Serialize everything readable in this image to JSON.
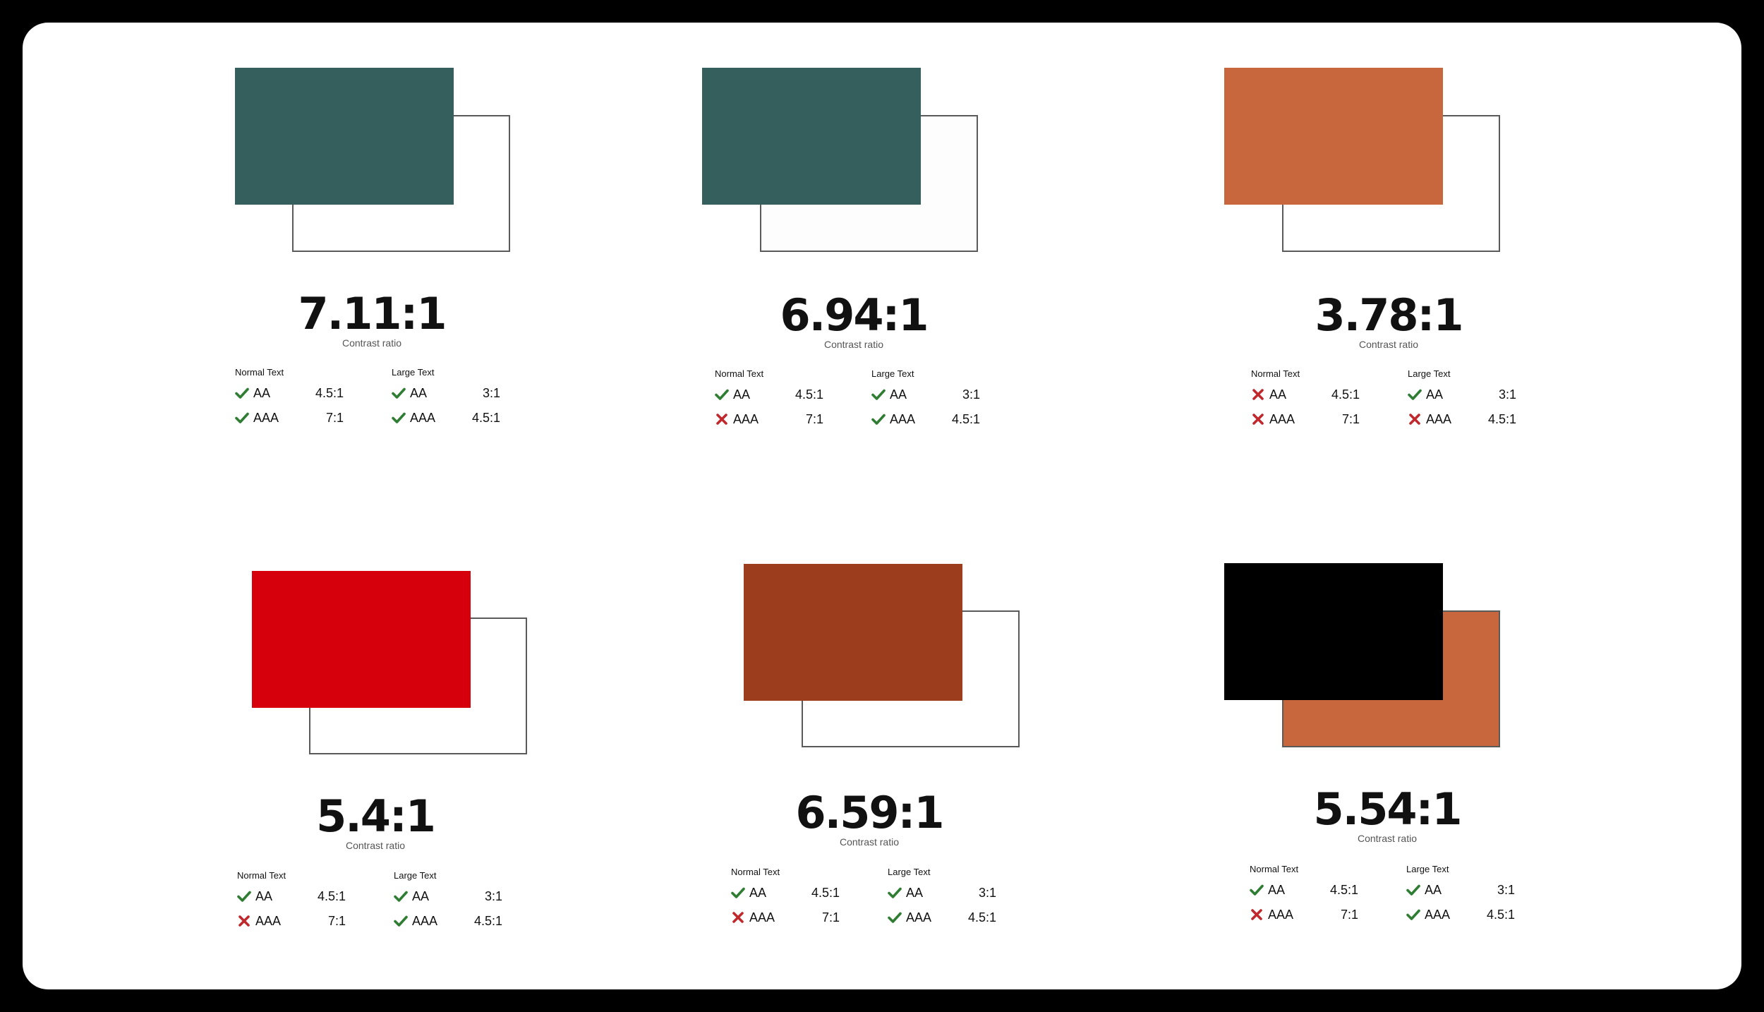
{
  "colors": {
    "pass": "#2e7d32",
    "fail": "#c0282d"
  },
  "labels": {
    "contrast_ratio": "Contrast ratio",
    "normal_text": "Normal Text",
    "large_text": "Large Text",
    "aa": "AA",
    "aaa": "AAA"
  },
  "cards": [
    {
      "ratio": "7.11:1",
      "foreground": "#355f5d",
      "background": "#ffffff",
      "normal": {
        "aa": {
          "pass": true,
          "req": "4.5:1"
        },
        "aaa": {
          "pass": true,
          "req": "7:1"
        }
      },
      "large": {
        "aa": {
          "pass": true,
          "req": "3:1"
        },
        "aaa": {
          "pass": true,
          "req": "4.5:1"
        }
      }
    },
    {
      "ratio": "6.94:1",
      "foreground": "#355f5d",
      "background": "#fdfdfd",
      "normal": {
        "aa": {
          "pass": true,
          "req": "4.5:1"
        },
        "aaa": {
          "pass": false,
          "req": "7:1"
        }
      },
      "large": {
        "aa": {
          "pass": true,
          "req": "3:1"
        },
        "aaa": {
          "pass": true,
          "req": "4.5:1"
        }
      }
    },
    {
      "ratio": "3.78:1",
      "foreground": "#c8663d",
      "background": "#ffffff",
      "normal": {
        "aa": {
          "pass": false,
          "req": "4.5:1"
        },
        "aaa": {
          "pass": false,
          "req": "7:1"
        }
      },
      "large": {
        "aa": {
          "pass": true,
          "req": "3:1"
        },
        "aaa": {
          "pass": false,
          "req": "4.5:1"
        }
      }
    },
    {
      "ratio": "5.4:1",
      "foreground": "#d6000c",
      "background": "#ffffff",
      "normal": {
        "aa": {
          "pass": true,
          "req": "4.5:1"
        },
        "aaa": {
          "pass": false,
          "req": "7:1"
        }
      },
      "large": {
        "aa": {
          "pass": true,
          "req": "3:1"
        },
        "aaa": {
          "pass": true,
          "req": "4.5:1"
        }
      }
    },
    {
      "ratio": "6.59:1",
      "foreground": "#9c3e1d",
      "background": "#ffffff",
      "normal": {
        "aa": {
          "pass": true,
          "req": "4.5:1"
        },
        "aaa": {
          "pass": false,
          "req": "7:1"
        }
      },
      "large": {
        "aa": {
          "pass": true,
          "req": "3:1"
        },
        "aaa": {
          "pass": true,
          "req": "4.5:1"
        }
      }
    },
    {
      "ratio": "5.54:1",
      "foreground": "#000000",
      "background": "#c8663d",
      "normal": {
        "aa": {
          "pass": true,
          "req": "4.5:1"
        },
        "aaa": {
          "pass": false,
          "req": "7:1"
        }
      },
      "large": {
        "aa": {
          "pass": true,
          "req": "3:1"
        },
        "aaa": {
          "pass": true,
          "req": "4.5:1"
        }
      }
    }
  ]
}
